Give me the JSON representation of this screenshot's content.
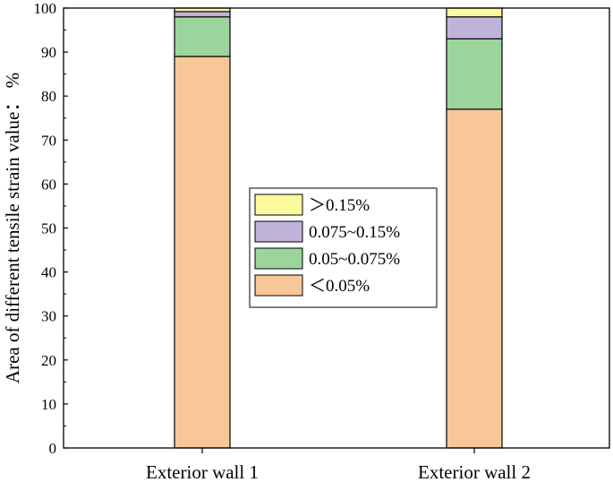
{
  "chart_data": {
    "type": "bar",
    "stacked": true,
    "title": "",
    "xlabel": "",
    "ylabel": "Area of different tensile strain value： %",
    "ylim": [
      0,
      100
    ],
    "yticks": [
      0,
      10,
      20,
      30,
      40,
      50,
      60,
      70,
      80,
      90,
      100
    ],
    "grid": false,
    "categories": [
      "Exterior wall 1",
      "Exterior wall 2"
    ],
    "series": [
      {
        "name": "＜0.05%",
        "color": "#f8c697",
        "values": [
          89,
          77
        ]
      },
      {
        "name": "0.05~0.075%",
        "color": "#9bd59b",
        "values": [
          9,
          16
        ]
      },
      {
        "name": "0.075~0.15%",
        "color": "#c0b3da",
        "values": [
          1.2,
          5
        ]
      },
      {
        "name": "＞0.15%",
        "color": "#fdfa9d",
        "values": [
          0.8,
          2
        ]
      }
    ],
    "legend_order": [
      "＞0.15%",
      "0.075~0.15%",
      "0.05~0.075%",
      "＜0.05%"
    ],
    "legend_position": "center"
  }
}
